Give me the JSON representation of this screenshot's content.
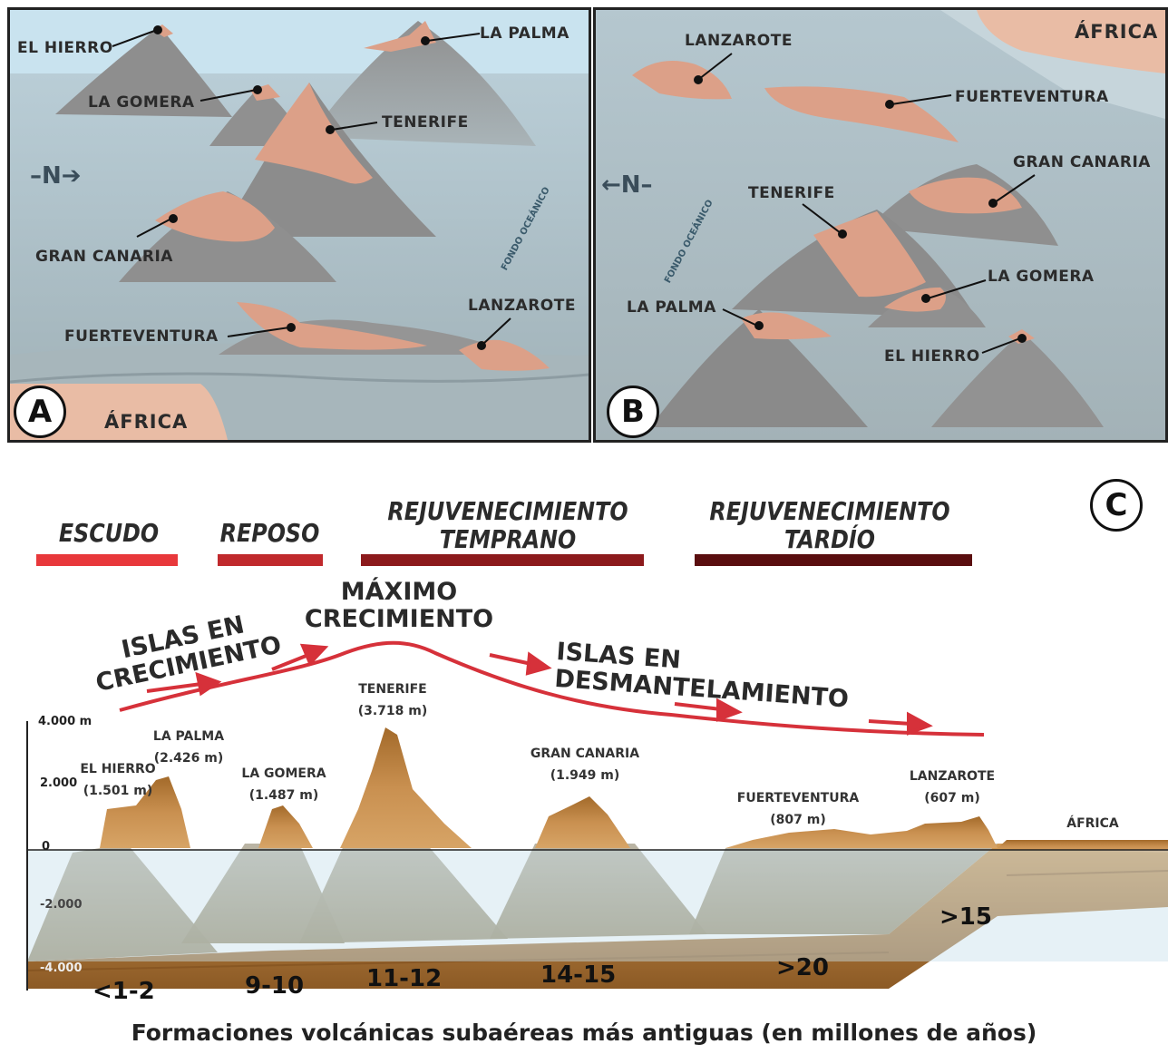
{
  "panel_a": {
    "badge": "A",
    "north": "–N➔",
    "labels": {
      "el_hierro": "EL HIERRO",
      "la_palma": "LA PALMA",
      "la_gomera": "LA GOMERA",
      "tenerife": "TENERIFE",
      "gran_canaria": "GRAN CANARIA",
      "fuerteventura": "FUERTEVENTURA",
      "lanzarote": "LANZAROTE",
      "africa": "ÁFRICA",
      "fondo": "FONDO OCEÁNICO"
    }
  },
  "panel_b": {
    "badge": "B",
    "north": "←N–",
    "labels": {
      "lanzarote": "LANZAROTE",
      "fuerteventura": "FUERTEVENTURA",
      "gran_canaria": "GRAN CANARIA",
      "tenerife": "TENERIFE",
      "la_gomera": "LA GOMERA",
      "la_palma": "LA PALMA",
      "el_hierro": "EL HIERRO",
      "africa": "ÁFRICA",
      "fondo": "FONDO OCEÁNICO"
    }
  },
  "panel_c": {
    "badge": "C",
    "phases": {
      "escudo": "ESCUDO",
      "reposo": "REPOSO",
      "temprano_1": "REJUVENECIMIENTO",
      "temprano_2": "TEMPRANO",
      "tardio_1": "REJUVENECIMIENTO",
      "tardio_2": "TARDÍO"
    },
    "phase_colors": [
      "#e8383b",
      "#c0292c",
      "#8c1a1c",
      "#5a0e0f"
    ],
    "growth": {
      "crecimiento_1": "ISLAS EN",
      "crecimiento_2": "CRECIMIENTO",
      "maximo_1": "MÁXIMO",
      "maximo_2": "CRECIMIENTO",
      "desmantelamiento": "ISLAS EN DESMANTELAMIENTO"
    },
    "axis": {
      "t4000": "4.000 m",
      "t2000": "2.000",
      "t0": "0",
      "tm2000": "-2.000",
      "tm4000": "-4.000"
    },
    "peaks": {
      "el_hierro_name": "EL HIERRO",
      "el_hierro_height": "(1.501 m)",
      "la_palma_name": "LA PALMA",
      "la_palma_height": "(2.426 m)",
      "la_gomera_name": "LA GOMERA",
      "la_gomera_height": "(1.487 m)",
      "tenerife_name": "TENERIFE",
      "tenerife_height": "(3.718 m)",
      "gran_canaria_name": "GRAN CANARIA",
      "gran_canaria_height": "(1.949 m)",
      "fuerteventura_name": "FUERTEVENTURA",
      "fuerteventura_height": "(807 m)",
      "lanzarote_name": "LANZAROTE",
      "lanzarote_height": "(607 m)",
      "africa": "ÁFRICA"
    },
    "ages": {
      "a1": "<1-2",
      "a2": "9-10",
      "a3": "11-12",
      "a4": "14-15",
      "a5": ">20",
      "a6": ">15"
    },
    "caption": "Formaciones volcánicas subaéreas más antiguas (en millones de años)"
  }
}
